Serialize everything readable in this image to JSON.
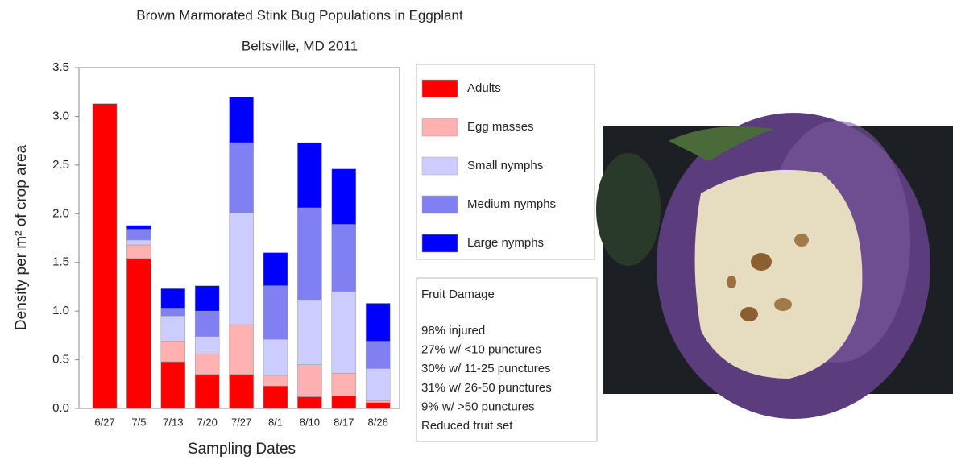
{
  "chart_data": {
    "type": "stacked_bar",
    "title": "Brown Marmorated Stink Bug Populations in Eggplant",
    "subtitle": "Beltsville, MD 2011",
    "x_label": "Sampling Dates",
    "y_label": "Density per m² of crop area",
    "categories": [
      "6/27",
      "7/5",
      "7/13",
      "7/20",
      "7/27",
      "8/1",
      "8/10",
      "8/17",
      "8/26"
    ],
    "series": [
      {
        "name": "Adults",
        "color": "#ff0000",
        "values": [
          3.13,
          1.54,
          0.48,
          0.35,
          0.35,
          0.23,
          0.12,
          0.13,
          0.06
        ]
      },
      {
        "name": "Egg masses",
        "color": "#ffb0b0",
        "values": [
          0,
          0.14,
          0.21,
          0.21,
          0.51,
          0.11,
          0.33,
          0.23,
          0.02
        ]
      },
      {
        "name": "Small nymphs",
        "color": "#ccccff",
        "values": [
          0,
          0.05,
          0.26,
          0.18,
          1.15,
          0.37,
          0.66,
          0.84,
          0.33
        ]
      },
      {
        "name": "Medium nymphs",
        "color": "#8080f2",
        "values": [
          0,
          0.11,
          0.08,
          0.26,
          0.72,
          0.55,
          0.95,
          0.69,
          0.28
        ]
      },
      {
        "name": "Large nymphs",
        "color": "#0000ff",
        "values": [
          0,
          0.04,
          0.2,
          0.26,
          0.47,
          0.34,
          0.67,
          0.57,
          0.39
        ]
      }
    ],
    "ylim": [
      0,
      3.5
    ],
    "yticks": [
      {
        "value": 0,
        "label": "0.0"
      },
      0.5,
      {
        "value": 1,
        "label": "1.0"
      },
      1.5,
      {
        "value": 2,
        "label": "2.0"
      },
      2.5,
      {
        "value": 3,
        "label": "3.0"
      },
      3.5
    ],
    "grid": false,
    "legend_position": "right",
    "annotation": {
      "title": "Fruit Damage",
      "lines": [
        "98% injured",
        "27% w/ <10 punctures",
        "30% w/ 11-25 punctures",
        "31% w/ 26-50 punctures",
        "9% w/ >50 punctures",
        "Reduced fruit set"
      ]
    }
  }
}
